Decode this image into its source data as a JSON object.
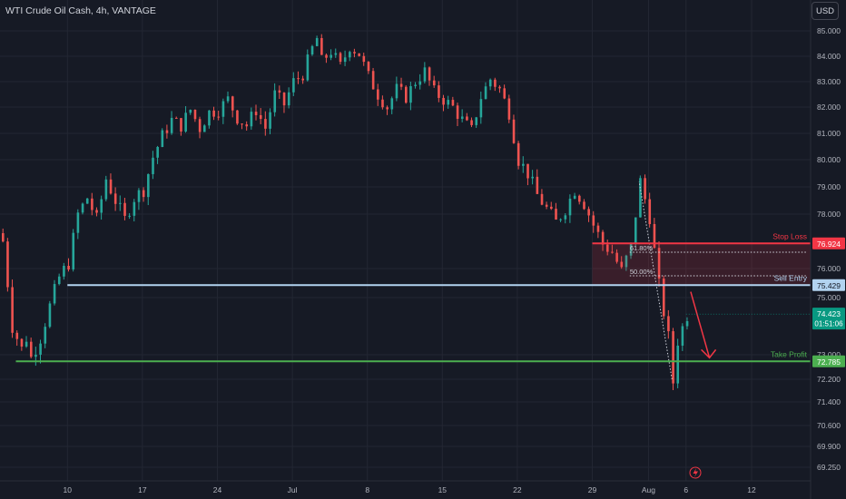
{
  "header": {
    "title": "WTI Crude Oil Cash, 4h, VANTAGE",
    "currency": "USD"
  },
  "colors": {
    "background": "#161a25",
    "up": "#26a69a",
    "down": "#ef5350",
    "stop_loss": "#f23645",
    "sell_entry": "#b2d3f0",
    "take_profit": "#4caf50",
    "current_price": "#089981"
  },
  "chart_data": {
    "type": "candlestick",
    "symbol": "WTI Crude Oil Cash",
    "interval": "4h",
    "ylim": [
      68.8,
      85.3
    ],
    "y_ticks": [
      "85.000",
      "84.000",
      "83.000",
      "82.000",
      "81.000",
      "80.000",
      "79.000",
      "78.000",
      "76.000",
      "75.000",
      "73.000",
      "72.200",
      "71.400",
      "70.600",
      "69.900",
      "69.250"
    ],
    "x_ticks": [
      "10",
      "17",
      "24",
      "Jul",
      "8",
      "15",
      "22",
      "29",
      "Aug",
      "6",
      "12"
    ],
    "x_tick_index": [
      14,
      30,
      46,
      62,
      78,
      94,
      110,
      126,
      138,
      146,
      160
    ],
    "close_path": [
      [
        0,
        77.0
      ],
      [
        2,
        74.0
      ],
      [
        4,
        73.2
      ],
      [
        5,
        73.6
      ],
      [
        6,
        72.9
      ],
      [
        8,
        73.6
      ],
      [
        10,
        74.7
      ],
      [
        12,
        75.7
      ],
      [
        14,
        76.2
      ],
      [
        16,
        78.0
      ],
      [
        18,
        78.6
      ],
      [
        20,
        77.8
      ],
      [
        22,
        79.3
      ],
      [
        24,
        78.5
      ],
      [
        26,
        77.8
      ],
      [
        28,
        78.6
      ],
      [
        30,
        78.9
      ],
      [
        32,
        80.1
      ],
      [
        34,
        80.9
      ],
      [
        36,
        81.5
      ],
      [
        38,
        81.3
      ],
      [
        40,
        81.9
      ],
      [
        42,
        81.2
      ],
      [
        44,
        81.8
      ],
      [
        46,
        81.9
      ],
      [
        48,
        82.3
      ],
      [
        50,
        81.6
      ],
      [
        52,
        81.3
      ],
      [
        54,
        81.9
      ],
      [
        56,
        81.2
      ],
      [
        58,
        82.5
      ],
      [
        60,
        82.1
      ],
      [
        62,
        83.0
      ],
      [
        64,
        83.3
      ],
      [
        66,
        84.3
      ],
      [
        67,
        84.7
      ],
      [
        68,
        83.8
      ],
      [
        70,
        84.2
      ],
      [
        72,
        83.6
      ],
      [
        74,
        84.4
      ],
      [
        76,
        84.1
      ],
      [
        78,
        83.2
      ],
      [
        80,
        82.5
      ],
      [
        82,
        82.0
      ],
      [
        84,
        82.7
      ],
      [
        86,
        82.4
      ],
      [
        88,
        83.0
      ],
      [
        90,
        83.4
      ],
      [
        92,
        82.6
      ],
      [
        94,
        82.3
      ],
      [
        96,
        82.0
      ],
      [
        98,
        81.5
      ],
      [
        100,
        81.1
      ],
      [
        102,
        82.4
      ],
      [
        104,
        83.1
      ],
      [
        106,
        82.7
      ],
      [
        108,
        81.8
      ],
      [
        110,
        80.0
      ],
      [
        112,
        79.5
      ],
      [
        114,
        78.7
      ],
      [
        116,
        78.2
      ],
      [
        118,
        77.7
      ],
      [
        120,
        78.2
      ],
      [
        122,
        78.9
      ],
      [
        124,
        78.4
      ],
      [
        126,
        77.6
      ],
      [
        128,
        76.9
      ],
      [
        130,
        76.6
      ],
      [
        132,
        75.9
      ],
      [
        134,
        76.8
      ],
      [
        136,
        79.2
      ],
      [
        138,
        77.9
      ],
      [
        140,
        75.4
      ],
      [
        142,
        73.6
      ],
      [
        143,
        72.1
      ],
      [
        144,
        73.5
      ],
      [
        146,
        74.4
      ]
    ],
    "levels": [
      {
        "label": "Stop Loss",
        "value": 76.924,
        "value_label": "76.924",
        "color": "#f23645",
        "from_index": 126
      },
      {
        "label": "Sell Entry",
        "value": 75.429,
        "value_label": "75.429",
        "color": "#b2d3f0",
        "from_index": 14
      },
      {
        "label": "Take Profit",
        "value": 72.785,
        "value_label": "72.785",
        "color": "#4caf50",
        "from_index": 3
      }
    ],
    "fib_levels": [
      {
        "label": "61.80%",
        "value": 76.6
      },
      {
        "label": "50.00%",
        "value": 75.75
      }
    ],
    "current_price": {
      "value": 74.423,
      "value_label": "74.423",
      "countdown": "01:51:06"
    },
    "arrow": {
      "from": [
        147,
        75.2
      ],
      "to": [
        151,
        72.9
      ]
    }
  }
}
